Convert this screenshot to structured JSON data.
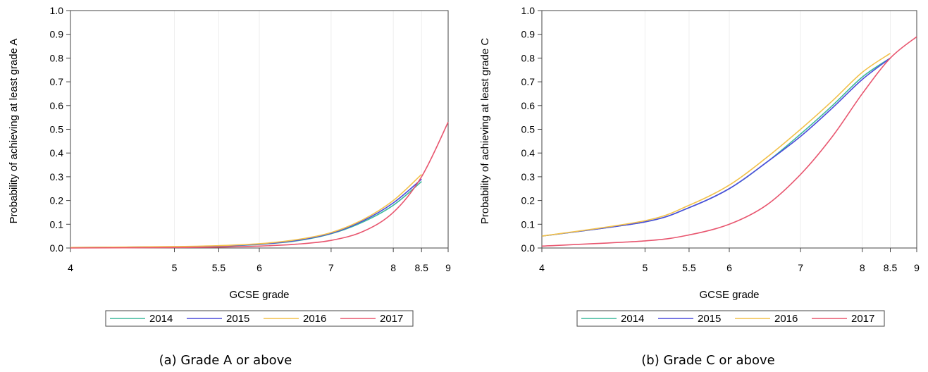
{
  "chart_data": [
    {
      "type": "line",
      "caption": "(a) Grade A or above",
      "xlabel": "GCSE grade",
      "ylabel": "Probability of achieving at least grade A",
      "xlim": [
        4,
        9
      ],
      "ylim": [
        0,
        1
      ],
      "x_scale": "log",
      "x_ticks": [
        "4",
        "5",
        "5.5",
        "6",
        "7",
        "8",
        "8.5",
        "9"
      ],
      "x_tick_values": [
        4,
        5,
        5.5,
        6,
        7,
        8,
        8.5,
        9
      ],
      "y_ticks": [
        "0.0",
        "0.1",
        "0.2",
        "0.3",
        "0.4",
        "0.5",
        "0.6",
        "0.7",
        "0.8",
        "0.9",
        "1.0"
      ],
      "legend_position": "bottom",
      "series": [
        {
          "name": "2014",
          "color": "#3cb89c",
          "x": [
            4,
            5,
            5.5,
            6,
            6.5,
            7,
            7.5,
            8,
            8.5
          ],
          "y": [
            0.002,
            0.005,
            0.008,
            0.015,
            0.03,
            0.06,
            0.11,
            0.18,
            0.28
          ]
        },
        {
          "name": "2015",
          "color": "#4b4bdc",
          "x": [
            4,
            5,
            5.5,
            6,
            6.5,
            7,
            7.5,
            8,
            8.5
          ],
          "y": [
            0.002,
            0.005,
            0.009,
            0.016,
            0.032,
            0.062,
            0.115,
            0.19,
            0.29
          ]
        },
        {
          "name": "2016",
          "color": "#f2c14a",
          "x": [
            4,
            5,
            5.5,
            6,
            6.5,
            7,
            7.5,
            8,
            8.5
          ],
          "y": [
            0.002,
            0.006,
            0.01,
            0.018,
            0.035,
            0.065,
            0.12,
            0.2,
            0.31
          ]
        },
        {
          "name": "2017",
          "color": "#e8566f",
          "x": [
            4,
            5,
            5.5,
            6,
            6.5,
            7,
            7.5,
            8,
            8.5,
            9
          ],
          "y": [
            0.0,
            0.002,
            0.004,
            0.008,
            0.016,
            0.032,
            0.07,
            0.15,
            0.3,
            0.53
          ]
        }
      ]
    },
    {
      "type": "line",
      "caption": "(b) Grade C or above",
      "xlabel": "GCSE grade",
      "ylabel": "Probability of achieving at least grade C",
      "xlim": [
        4,
        9
      ],
      "ylim": [
        0,
        1
      ],
      "x_scale": "log",
      "x_ticks": [
        "4",
        "5",
        "5.5",
        "6",
        "7",
        "8",
        "8.5",
        "9"
      ],
      "x_tick_values": [
        4,
        5,
        5.5,
        6,
        7,
        8,
        8.5,
        9
      ],
      "y_ticks": [
        "0.0",
        "0.1",
        "0.2",
        "0.3",
        "0.4",
        "0.5",
        "0.6",
        "0.7",
        "0.8",
        "0.9",
        "1.0"
      ],
      "legend_position": "bottom",
      "series": [
        {
          "name": "2014",
          "color": "#3cb89c",
          "x": [
            4,
            5,
            5.5,
            6,
            6.5,
            7,
            7.5,
            8,
            8.5
          ],
          "y": [
            0.05,
            0.11,
            0.17,
            0.25,
            0.36,
            0.48,
            0.6,
            0.72,
            0.8
          ]
        },
        {
          "name": "2015",
          "color": "#4b4bdc",
          "x": [
            4,
            5,
            5.5,
            6,
            6.5,
            7,
            7.5,
            8,
            8.5
          ],
          "y": [
            0.05,
            0.11,
            0.17,
            0.25,
            0.36,
            0.47,
            0.59,
            0.71,
            0.8
          ]
        },
        {
          "name": "2016",
          "color": "#f2c14a",
          "x": [
            4,
            5,
            5.5,
            6,
            6.5,
            7,
            7.5,
            8,
            8.5
          ],
          "y": [
            0.05,
            0.115,
            0.18,
            0.265,
            0.38,
            0.5,
            0.62,
            0.74,
            0.82
          ]
        },
        {
          "name": "2017",
          "color": "#e8566f",
          "x": [
            4,
            5,
            5.5,
            6,
            6.5,
            7,
            7.5,
            8,
            8.5,
            9
          ],
          "y": [
            0.008,
            0.03,
            0.055,
            0.1,
            0.18,
            0.31,
            0.47,
            0.65,
            0.8,
            0.89
          ]
        }
      ]
    }
  ]
}
